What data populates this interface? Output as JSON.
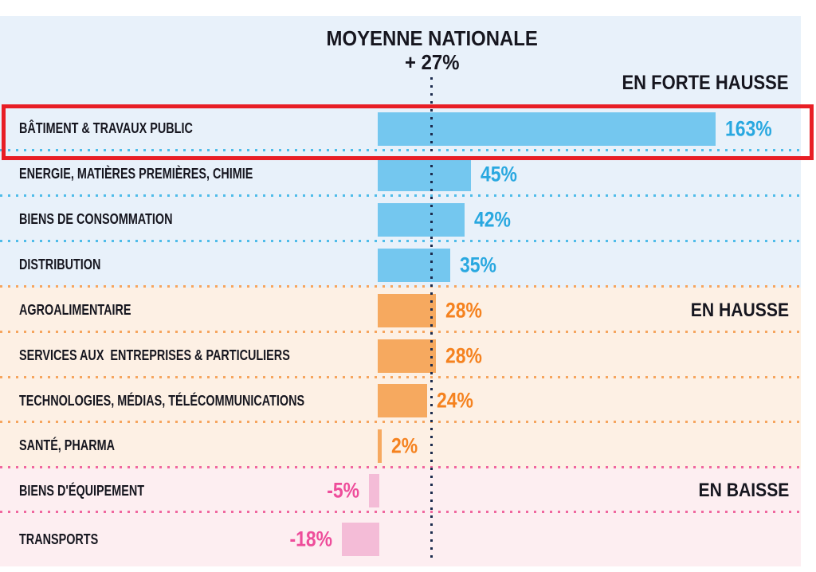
{
  "header": {
    "title_line1": "MOYENNE NATIONALE",
    "title_line2": "+ 27%"
  },
  "chart_data": {
    "type": "bar",
    "orientation": "horizontal",
    "unit": "%",
    "title": "MOYENNE NATIONALE",
    "national_average_label": "+ 27%",
    "national_average_value": 27,
    "mean_line": {
      "value_pct": 27,
      "style": "dotted",
      "color": "#1b2b4d"
    },
    "xlim": [
      -18,
      163
    ],
    "categories": [
      "BÂTIMENT & TRAVAUX PUBLIC",
      "ENERGIE, MATIÈRES PREMIÈRES, CHIMIE",
      "BIENS DE CONSOMMATION",
      "DISTRIBUTION",
      "AGROALIMENTAIRE",
      "SERVICES AUX  ENTREPRISES & PARTICULIERS",
      "TECHNOLOGIES, MÉDIAS, TÉLÉCOMMUNICATIONS",
      "SANTÉ, PHARMA",
      "BIENS D'ÉQUIPEMENT",
      "TRANSPORTS"
    ],
    "values": [
      163,
      45,
      42,
      35,
      28,
      28,
      24,
      2,
      -5,
      -18
    ],
    "rows": [
      {
        "label": "BÂTIMENT & TRAVAUX PUBLIC",
        "value": 163,
        "display": "163%",
        "group": "strong_up",
        "highlighted": true
      },
      {
        "label": "ENERGIE, MATIÈRES PREMIÈRES, CHIMIE",
        "value": 45,
        "display": "45%",
        "group": "strong_up"
      },
      {
        "label": "BIENS DE CONSOMMATION",
        "value": 42,
        "display": "42%",
        "group": "strong_up"
      },
      {
        "label": "DISTRIBUTION",
        "value": 35,
        "display": "35%",
        "group": "strong_up"
      },
      {
        "label": "AGROALIMENTAIRE",
        "value": 28,
        "display": "28%",
        "group": "up",
        "show_zone_label": true
      },
      {
        "label": "SERVICES AUX  ENTREPRISES & PARTICULIERS",
        "value": 28,
        "display": "28%",
        "group": "up"
      },
      {
        "label": "TECHNOLOGIES, MÉDIAS, TÉLÉCOMMUNICATIONS",
        "value": 24,
        "display": "24%",
        "group": "up"
      },
      {
        "label": "SANTÉ, PHARMA",
        "value": 2,
        "display": "2%",
        "group": "up"
      },
      {
        "label": "BIENS D'ÉQUIPEMENT",
        "value": -5,
        "display": "-5%",
        "group": "down",
        "show_zone_label": true
      },
      {
        "label": "TRANSPORTS",
        "value": -18,
        "display": "-18%",
        "group": "down"
      }
    ],
    "groups": {
      "strong_up": {
        "zone_label": "EN FORTE HAUSSE",
        "bg": "#e8f1fa",
        "bar": "#74c7ef",
        "value_color": "#29a8e0",
        "dots": "#4fbce9"
      },
      "up": {
        "zone_label": "EN HAUSSE",
        "bg": "#fdf0e4",
        "bar": "#f6a95f",
        "value_color": "#f5821f",
        "dots": "#f6a55e"
      },
      "down": {
        "zone_label": "EN BAISSE",
        "bg": "#fdeef1",
        "bar": "#f4bcd7",
        "value_color": "#ee4d9b",
        "dots": "#f0679f"
      }
    },
    "highlight_color": "#e81e25",
    "label_color": "#16161f"
  }
}
